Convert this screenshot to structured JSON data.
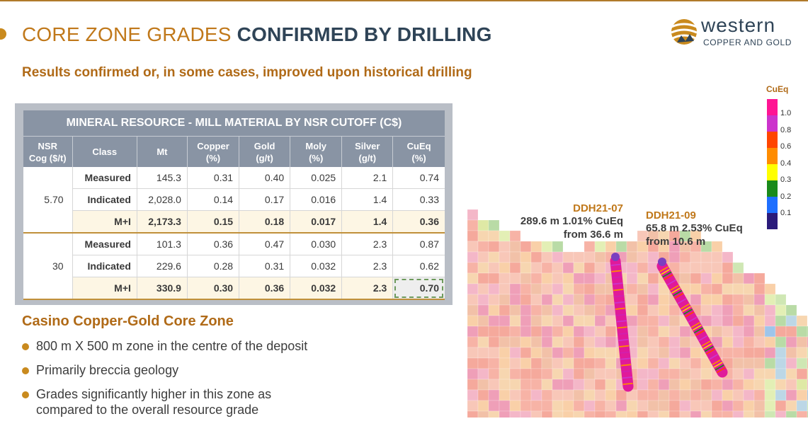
{
  "header": {
    "title_light": "CORE ZONE GRADES ",
    "title_bold": "CONFIRMED BY DRILLING",
    "subtitle": "Results confirmed or, in some cases, improved upon historical drilling"
  },
  "logo": {
    "word": "western",
    "tagline": "COPPER AND GOLD"
  },
  "table": {
    "title": "MINERAL RESOURCE - MILL MATERIAL BY NSR CUTOFF (C$)",
    "headers": [
      {
        "l1": "NSR",
        "l2": "Cog ($/t)"
      },
      {
        "l1": "Class",
        "l2": ""
      },
      {
        "l1": "Mt",
        "l2": ""
      },
      {
        "l1": "Copper",
        "l2": "(%)"
      },
      {
        "l1": "Gold",
        "l2": "(g/t)"
      },
      {
        "l1": "Moly",
        "l2": "(%)"
      },
      {
        "l1": "Silver",
        "l2": "(g/t)"
      },
      {
        "l1": "CuEq",
        "l2": "(%)"
      }
    ],
    "groups": [
      {
        "cog": "5.70",
        "rows": [
          {
            "cls": "Measured",
            "mt": "145.3",
            "cu": "0.31",
            "au": "0.40",
            "mo": "0.025",
            "ag": "2.1",
            "cueq": "0.74"
          },
          {
            "cls": "Indicated",
            "mt": "2,028.0",
            "cu": "0.14",
            "au": "0.17",
            "mo": "0.016",
            "ag": "1.4",
            "cueq": "0.33"
          },
          {
            "cls": "M+I",
            "mt": "2,173.3",
            "cu": "0.15",
            "au": "0.18",
            "mo": "0.017",
            "ag": "1.4",
            "cueq": "0.36"
          }
        ]
      },
      {
        "cog": "30",
        "rows": [
          {
            "cls": "Measured",
            "mt": "101.3",
            "cu": "0.36",
            "au": "0.47",
            "mo": "0.030",
            "ag": "2.3",
            "cueq": "0.87"
          },
          {
            "cls": "Indicated",
            "mt": "229.6",
            "cu": "0.28",
            "au": "0.31",
            "mo": "0.032",
            "ag": "2.3",
            "cueq": "0.62"
          },
          {
            "cls": "M+I",
            "mt": "330.9",
            "cu": "0.30",
            "au": "0.36",
            "mo": "0.032",
            "ag": "2.3",
            "cueq": "0.70"
          }
        ]
      }
    ]
  },
  "core_zone": {
    "heading": "Casino Copper-Gold Core Zone",
    "bullets": [
      "800 m X 500 m zone in the centre of the deposit",
      "Primarily breccia geology",
      "Grades significantly higher in this zone as compared to the overall resource grade"
    ]
  },
  "section": {
    "legend_title": "CuEq",
    "legend_labels": [
      "1.0",
      "0.8",
      "0.6",
      "0.4",
      "0.3",
      "0.2",
      "0.1"
    ],
    "legend_colors": [
      "#ff1493",
      "#cc33cc",
      "#ff4500",
      "#ff8c00",
      "#ffff00",
      "#1a8a1a",
      "#1e6fff",
      "#2a1a7a"
    ],
    "holes": [
      {
        "name": "DDH21-07",
        "line1": "289.6 m 1.01% CuEq",
        "line2": "from 36.6 m"
      },
      {
        "name": "DDH21-09",
        "line1": "65.8 m 2.53% CuEq",
        "line2": "from 10.6 m"
      }
    ]
  }
}
